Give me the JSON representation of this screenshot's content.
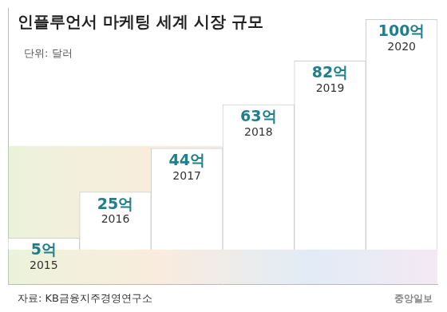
{
  "chart_data": {
    "type": "bar",
    "title": "인플루언서 마케팅 세계 시장 규모",
    "subtitle": "단위: 달러",
    "source": "자료: KB금융지주경영연구소",
    "logo": "중앙일보",
    "categories": [
      "2015",
      "2016",
      "2017",
      "2018",
      "2019",
      "2020"
    ],
    "values": [
      5,
      25,
      44,
      63,
      82,
      100
    ],
    "value_labels": [
      "5억",
      "25억",
      "44억",
      "63억",
      "82억",
      "100억"
    ],
    "data_labels": true,
    "color": "#ffffff",
    "ylim": [
      -15,
      105
    ],
    "grid": false,
    "tick_labels": false
  }
}
